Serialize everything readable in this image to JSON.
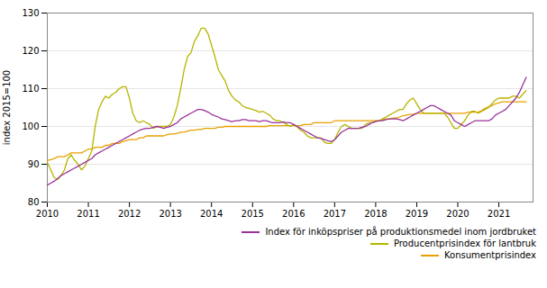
{
  "chart_data": {
    "type": "line",
    "ylabel": "index 2015=100",
    "xlim": [
      2010.0,
      2021.833
    ],
    "xticks": [
      2010,
      2011,
      2012,
      2013,
      2014,
      2015,
      2016,
      2017,
      2018,
      2019,
      2020,
      2021
    ],
    "ylim": [
      80,
      130
    ],
    "yticks": [
      80,
      90,
      100,
      110,
      120,
      130
    ],
    "grid": true,
    "legend": "lower right",
    "x": [
      2010,
      2010.0833,
      2010.1667,
      2010.25,
      2010.3333,
      2010.4167,
      2010.5,
      2010.5833,
      2010.6667,
      2010.75,
      2010.8333,
      2010.9167,
      2011,
      2011.0833,
      2011.1667,
      2011.25,
      2011.3333,
      2011.4167,
      2011.5,
      2011.5833,
      2011.6667,
      2011.75,
      2011.8333,
      2011.9167,
      2012,
      2012.0833,
      2012.1667,
      2012.25,
      2012.3333,
      2012.4167,
      2012.5,
      2012.5833,
      2012.6667,
      2012.75,
      2012.8333,
      2012.9167,
      2013,
      2013.0833,
      2013.1667,
      2013.25,
      2013.3333,
      2013.4167,
      2013.5,
      2013.5833,
      2013.6667,
      2013.75,
      2013.8333,
      2013.9167,
      2014,
      2014.0833,
      2014.1667,
      2014.25,
      2014.3333,
      2014.4167,
      2014.5,
      2014.5833,
      2014.6667,
      2014.75,
      2014.8333,
      2014.9167,
      2015,
      2015.0833,
      2015.1667,
      2015.25,
      2015.3333,
      2015.4167,
      2015.5,
      2015.5833,
      2015.6667,
      2015.75,
      2015.8333,
      2015.9167,
      2016,
      2016.0833,
      2016.1667,
      2016.25,
      2016.3333,
      2016.4167,
      2016.5,
      2016.5833,
      2016.6667,
      2016.75,
      2016.8333,
      2016.9167,
      2017,
      2017.0833,
      2017.1667,
      2017.25,
      2017.3333,
      2017.4167,
      2017.5,
      2017.5833,
      2017.6667,
      2017.75,
      2017.8333,
      2017.9167,
      2018,
      2018.0833,
      2018.1667,
      2018.25,
      2018.3333,
      2018.4167,
      2018.5,
      2018.5833,
      2018.6667,
      2018.75,
      2018.8333,
      2018.9167,
      2019,
      2019.0833,
      2019.1667,
      2019.25,
      2019.3333,
      2019.4167,
      2019.5,
      2019.5833,
      2019.6667,
      2019.75,
      2019.8333,
      2019.9167,
      2020,
      2020.0833,
      2020.1667,
      2020.25,
      2020.3333,
      2020.4167,
      2020.5,
      2020.5833,
      2020.6667,
      2020.75,
      2020.8333,
      2020.9167,
      2021,
      2021.0833,
      2021.1667,
      2021.25,
      2021.3333,
      2021.4167,
      2021.5,
      2021.5833,
      2021.6667
    ],
    "series": [
      {
        "name": "Index för inköpspriser på produktionsmedel inom jordbruket",
        "color": "#993399",
        "values": [
          84.5,
          85.0,
          85.5,
          86.2,
          87.0,
          87.5,
          88.0,
          88.5,
          89.0,
          89.5,
          90.0,
          90.5,
          91.0,
          91.5,
          92.5,
          93.0,
          93.5,
          94.0,
          94.5,
          95.0,
          95.5,
          96.0,
          96.5,
          97.0,
          97.5,
          98.0,
          98.5,
          99.0,
          99.3,
          99.5,
          99.5,
          99.8,
          100.0,
          99.8,
          99.5,
          99.8,
          100.0,
          100.5,
          101.0,
          102.0,
          102.5,
          103.0,
          103.5,
          104.0,
          104.5,
          104.5,
          104.2,
          103.8,
          103.2,
          102.8,
          102.5,
          102.0,
          101.8,
          101.5,
          101.3,
          101.5,
          101.5,
          101.8,
          101.8,
          101.5,
          101.5,
          101.5,
          101.3,
          101.5,
          101.5,
          101.2,
          101.0,
          101.0,
          101.0,
          101.2,
          101.0,
          101.0,
          100.5,
          100.0,
          99.5,
          99.0,
          98.5,
          98.0,
          97.5,
          97.0,
          96.8,
          96.5,
          96.2,
          96.0,
          96.5,
          97.5,
          98.5,
          99.0,
          99.5,
          99.5,
          99.5,
          99.5,
          99.8,
          100.0,
          100.5,
          101.0,
          101.3,
          101.5,
          101.5,
          101.8,
          102.0,
          102.0,
          102.0,
          101.8,
          101.5,
          102.0,
          102.5,
          103.0,
          103.5,
          104.0,
          104.5,
          105.0,
          105.5,
          105.5,
          105.0,
          104.5,
          104.0,
          103.5,
          103.0,
          101.5,
          101.0,
          100.5,
          100.0,
          100.5,
          101.0,
          101.5,
          101.5,
          101.5,
          101.5,
          101.5,
          102.0,
          103.0,
          103.5,
          104.0,
          104.5,
          105.5,
          106.5,
          107.5,
          109.0,
          111.0,
          113.0
        ]
      },
      {
        "name": "Producentprisindex för lantbruk",
        "color": "#b5b500",
        "values": [
          90.5,
          88.5,
          86.5,
          86.0,
          87.0,
          88.5,
          91.5,
          92.5,
          91.0,
          90.0,
          88.5,
          89.5,
          91.5,
          93.5,
          100.0,
          104.5,
          106.5,
          108.0,
          107.5,
          108.5,
          109.0,
          110.0,
          110.5,
          110.5,
          107.5,
          103.5,
          101.5,
          101.0,
          101.5,
          101.0,
          100.5,
          99.5,
          100.0,
          100.0,
          100.0,
          100.0,
          100.5,
          102.5,
          105.5,
          110.0,
          115.0,
          118.5,
          119.5,
          122.5,
          124.0,
          126.0,
          126.0,
          124.5,
          121.5,
          118.5,
          115.0,
          113.5,
          112.0,
          109.5,
          108.0,
          107.0,
          106.5,
          105.5,
          105.0,
          104.8,
          104.5,
          104.2,
          103.8,
          104.0,
          103.5,
          103.0,
          102.0,
          101.5,
          101.5,
          101.0,
          100.5,
          100.0,
          100.5,
          100.0,
          99.0,
          98.5,
          97.5,
          97.0,
          97.0,
          97.0,
          97.0,
          95.8,
          95.5,
          95.5,
          96.5,
          98.5,
          100.0,
          100.5,
          100.0,
          99.5,
          99.5,
          99.5,
          99.5,
          100.5,
          101.0,
          101.0,
          101.5,
          101.5,
          102.0,
          102.5,
          103.0,
          103.5,
          104.0,
          104.5,
          104.5,
          106.0,
          107.0,
          107.5,
          106.0,
          104.5,
          103.5,
          103.5,
          103.5,
          103.5,
          103.5,
          103.5,
          103.5,
          102.5,
          101.0,
          99.5,
          99.5,
          100.5,
          101.5,
          103.0,
          104.0,
          104.0,
          103.5,
          104.0,
          104.5,
          105.0,
          106.0,
          107.0,
          107.5,
          107.5,
          107.5,
          107.5,
          108.0,
          108.0,
          107.5,
          108.5,
          109.5
        ]
      },
      {
        "name": "Konsumentprisindex",
        "color": "#e8a000",
        "values": [
          91.0,
          91.2,
          91.5,
          92.0,
          92.0,
          92.0,
          92.5,
          93.0,
          93.0,
          93.0,
          93.0,
          93.5,
          94.0,
          94.0,
          94.5,
          94.5,
          94.5,
          95.0,
          95.0,
          95.5,
          95.5,
          95.5,
          96.0,
          96.2,
          96.5,
          96.5,
          96.5,
          97.0,
          97.0,
          97.5,
          97.5,
          97.5,
          97.5,
          97.5,
          97.5,
          97.8,
          98.0,
          98.0,
          98.2,
          98.5,
          98.5,
          98.8,
          99.0,
          99.0,
          99.2,
          99.2,
          99.5,
          99.5,
          99.5,
          99.5,
          99.8,
          99.8,
          100.0,
          100.0,
          100.0,
          100.0,
          100.0,
          100.0,
          100.0,
          100.0,
          100.0,
          100.0,
          100.0,
          100.0,
          100.0,
          100.2,
          100.2,
          100.2,
          100.2,
          100.2,
          100.2,
          100.2,
          100.2,
          100.2,
          100.2,
          100.5,
          100.5,
          100.5,
          101.0,
          101.0,
          101.0,
          101.0,
          101.0,
          101.0,
          101.5,
          101.5,
          101.5,
          101.5,
          101.5,
          101.5,
          101.5,
          101.5,
          101.5,
          101.5,
          101.5,
          101.5,
          101.5,
          101.5,
          101.8,
          102.0,
          102.0,
          102.2,
          102.2,
          102.5,
          102.8,
          103.0,
          103.2,
          103.2,
          103.5,
          103.5,
          103.5,
          103.5,
          103.5,
          103.5,
          103.5,
          103.5,
          103.5,
          103.5,
          103.5,
          103.5,
          103.5,
          103.5,
          103.5,
          103.8,
          103.8,
          103.8,
          103.8,
          104.2,
          104.8,
          105.2,
          105.5,
          106.0,
          106.2,
          106.5,
          106.5,
          106.5,
          106.5,
          106.5,
          106.5,
          106.5,
          106.5
        ]
      }
    ]
  }
}
